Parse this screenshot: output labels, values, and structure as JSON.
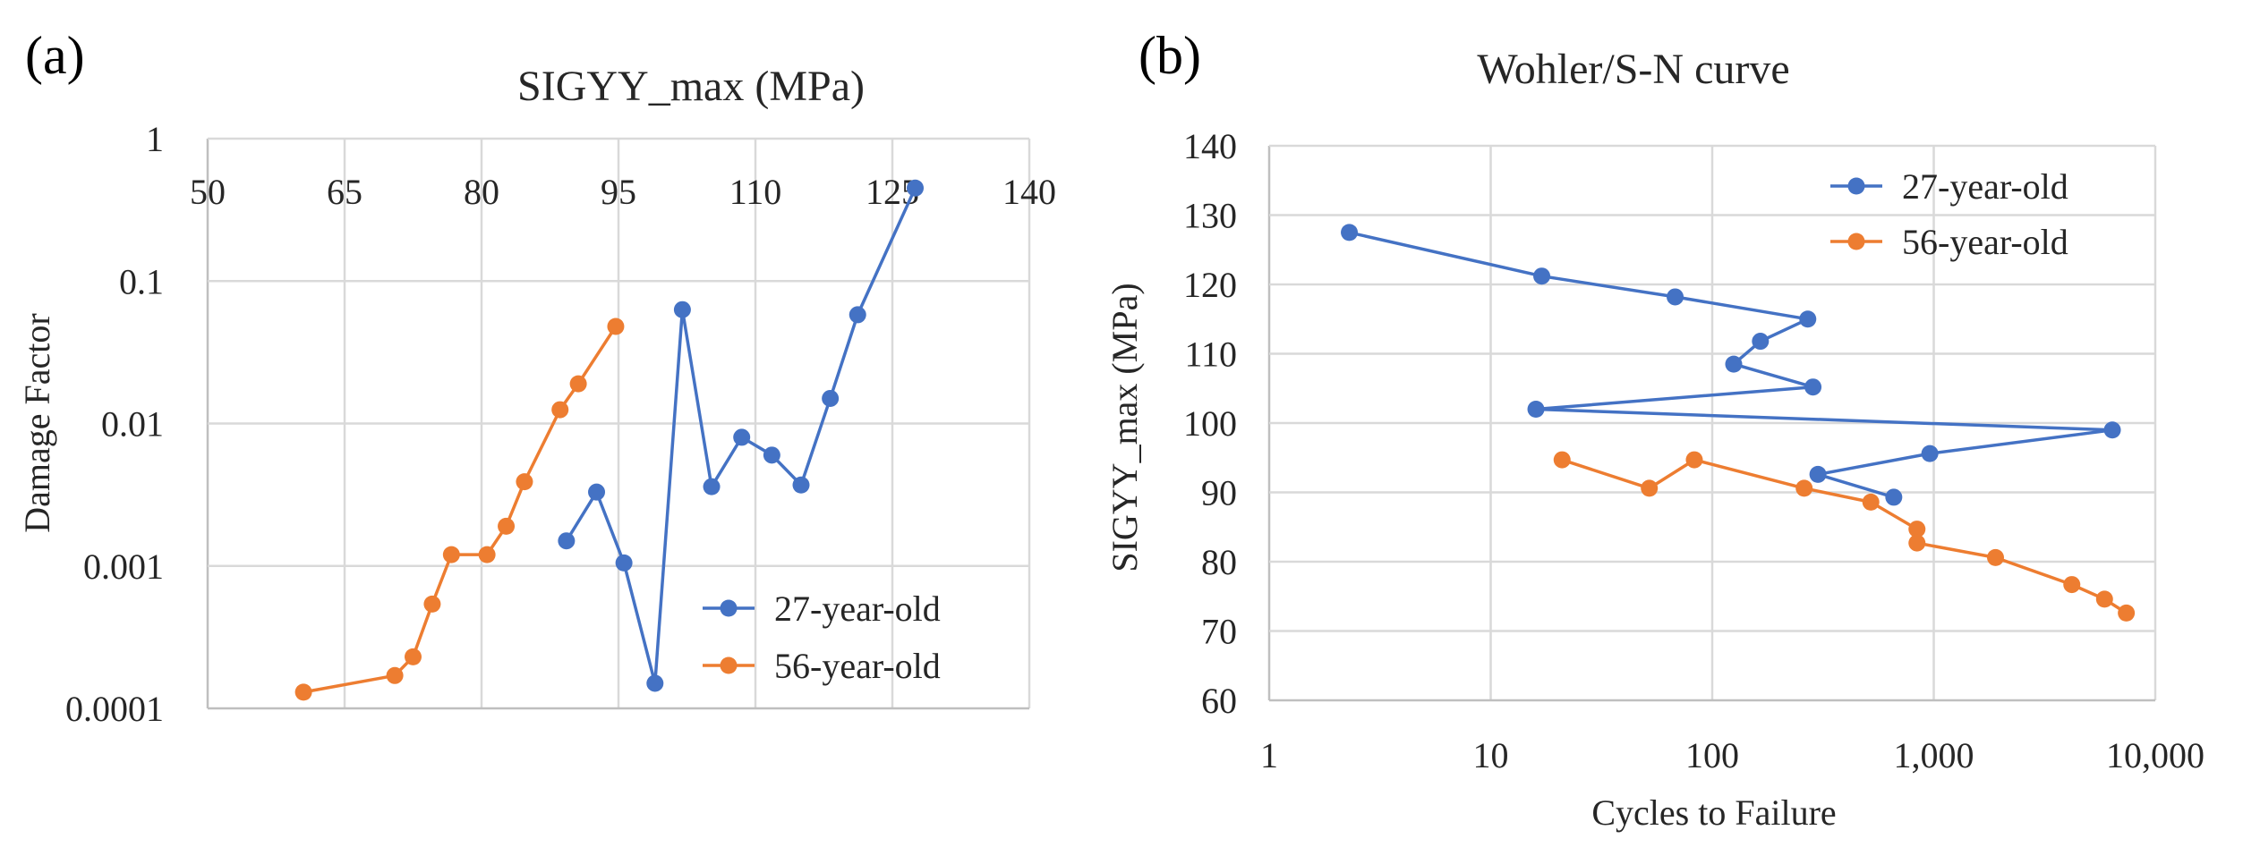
{
  "colors": {
    "series_27": "#4472C4",
    "series_56": "#ED7D31"
  },
  "chart_data": [
    {
      "panel": "(a)",
      "type": "line",
      "title": "SIGYY_max  (MPa)",
      "xlabel": "",
      "ylabel": "Damage  Factor",
      "xlim": [
        50,
        140
      ],
      "xticks": [
        "50",
        "65",
        "80",
        "95",
        "110",
        "125",
        "140"
      ],
      "xtick_values": [
        50,
        65,
        80,
        95,
        110,
        125,
        140
      ],
      "yscale": "log",
      "ylim": [
        0.0001,
        1
      ],
      "yticks": [
        "0.0001",
        "0.001",
        "0.01",
        "0.1",
        "1"
      ],
      "ytick_values": [
        0.0001,
        0.001,
        0.01,
        0.1,
        1
      ],
      "grid": true,
      "x_axis_position": "top",
      "legend_position": "bottom-right",
      "series": [
        {
          "name": "27-year-old",
          "color_key": "series_27",
          "x": [
            89.3,
            92.6,
            95.6,
            99.0,
            102.0,
            105.2,
            108.5,
            111.8,
            115.0,
            118.2,
            121.2,
            127.5
          ],
          "y": [
            0.0015,
            0.0033,
            0.00105,
            0.00015,
            0.063,
            0.0036,
            0.008,
            0.006,
            0.0037,
            0.015,
            0.058,
            0.45
          ]
        },
        {
          "name": "56-year-old",
          "color_key": "series_56",
          "x": [
            60.5,
            70.5,
            72.5,
            74.6,
            76.7,
            80.6,
            82.7,
            84.7,
            88.6,
            90.6,
            94.7
          ],
          "y": [
            0.00013,
            0.00017,
            0.00023,
            0.00054,
            0.0012,
            0.0012,
            0.0019,
            0.0039,
            0.0125,
            0.019,
            0.048
          ]
        }
      ]
    },
    {
      "panel": "(b)",
      "type": "line",
      "title": "Wohler/S-N curve",
      "xlabel": "Cycles to Failure",
      "ylabel": "SIGYY_max  (MPa)",
      "xscale": "log",
      "xlim": [
        1,
        10000
      ],
      "xticks": [
        "1",
        "10",
        "100",
        "1,000",
        "10,000"
      ],
      "xtick_values": [
        1,
        10,
        100,
        1000,
        10000
      ],
      "ylim": [
        60,
        140
      ],
      "yticks": [
        "60",
        "70",
        "80",
        "90",
        "100",
        "110",
        "120",
        "130",
        "140"
      ],
      "ytick_values": [
        60,
        70,
        80,
        90,
        100,
        110,
        120,
        130,
        140
      ],
      "grid": true,
      "legend_position": "top-right",
      "series": [
        {
          "name": "27-year-old",
          "color_key": "series_27",
          "x": [
            2.3,
            17,
            68,
            270,
            165,
            125,
            285,
            16,
            6400,
            960,
            300,
            660
          ],
          "y": [
            127.5,
            121.2,
            118.2,
            115.0,
            111.8,
            108.5,
            105.2,
            102.0,
            99.0,
            95.6,
            92.6,
            89.3
          ]
        },
        {
          "name": "56-year-old",
          "color_key": "series_56",
          "x": [
            21,
            52,
            83,
            260,
            520,
            840,
            840,
            1900,
            4200,
            5900,
            7400
          ],
          "y": [
            94.7,
            90.6,
            94.7,
            90.6,
            88.6,
            84.7,
            82.7,
            80.6,
            76.7,
            74.6,
            72.6
          ]
        }
      ]
    }
  ]
}
